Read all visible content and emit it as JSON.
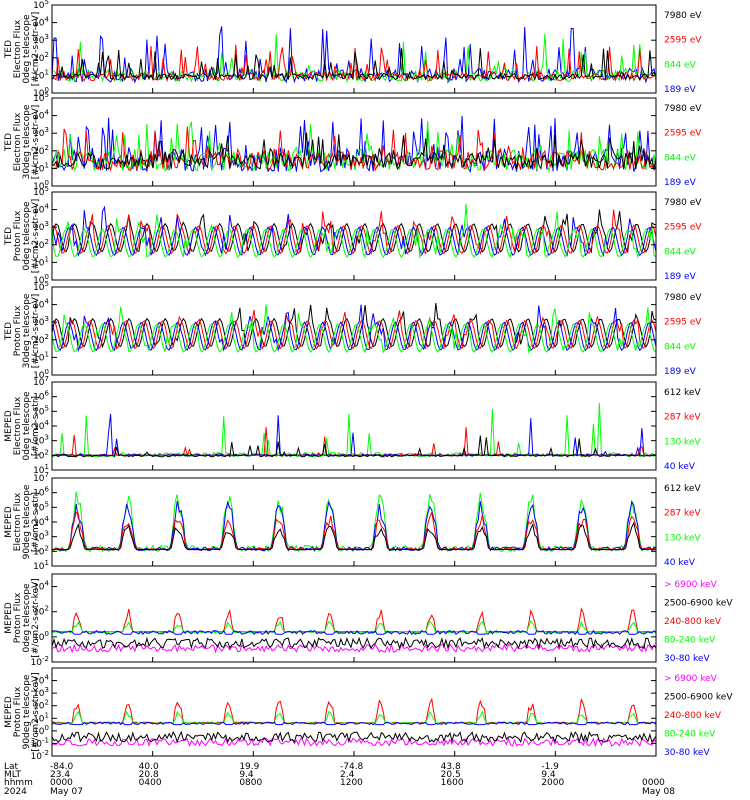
{
  "colors": {
    "black": "#000000",
    "red": "#ff0000",
    "green": "#00ff00",
    "blue": "#0000ff",
    "magenta": "#ff00ff"
  },
  "chart_data": [
    {
      "type": "line",
      "ylabel": [
        "TED",
        "Electron Flux",
        "0deg telescope",
        "[#/cm2-s-str-eV]"
      ],
      "yscale": "log",
      "ylim_exp": [
        0,
        5
      ],
      "yticks": [
        {
          "b": "10",
          "e": "0"
        },
        {
          "b": "10",
          "e": "1"
        },
        {
          "b": "10",
          "e": "2"
        },
        {
          "b": "10",
          "e": "3"
        },
        {
          "b": "10",
          "e": "4"
        },
        {
          "b": "10",
          "e": "5"
        }
      ],
      "legend": [
        {
          "label": "7980 eV",
          "color": "#000000"
        },
        {
          "label": "2595 eV",
          "color": "#ff0000"
        },
        {
          "label": "844 eV",
          "color": "#00ff00"
        },
        {
          "label": "189 eV",
          "color": "#0000ff"
        }
      ],
      "pattern": "spikes",
      "baseline": [
        0.6,
        1.4
      ],
      "peak": 3.8,
      "draw": [
        "#0000ff",
        "#00ff00",
        "#ff0000",
        "#000000"
      ],
      "seed": 11
    },
    {
      "type": "line",
      "ylabel": [
        "TED",
        "Electron Flux",
        "30deg telescope",
        "[#/cm2-s-str-eV]"
      ],
      "yscale": "log",
      "ylim_exp": [
        0,
        5
      ],
      "yticks": [
        {
          "b": "10",
          "e": "0"
        },
        {
          "b": "10",
          "e": "1"
        },
        {
          "b": "10",
          "e": "2"
        },
        {
          "b": "10",
          "e": "3"
        },
        {
          "b": "10",
          "e": "4"
        },
        {
          "b": "10",
          "e": "5"
        }
      ],
      "legend": [
        {
          "label": "7980 eV",
          "color": "#000000"
        },
        {
          "label": "2595 eV",
          "color": "#ff0000"
        },
        {
          "label": "844 eV",
          "color": "#00ff00"
        },
        {
          "label": "189 eV",
          "color": "#0000ff"
        }
      ],
      "pattern": "spikes",
      "baseline": [
        0.8,
        2.2
      ],
      "peak": 4.0,
      "draw": [
        "#0000ff",
        "#00ff00",
        "#ff0000",
        "#000000"
      ],
      "seed": 23
    },
    {
      "type": "line",
      "ylabel": [
        "TED",
        "Proton Flux",
        "0deg telescope",
        "[#/cm2-s-str-eV]"
      ],
      "yscale": "log",
      "ylim_exp": [
        0,
        5
      ],
      "yticks": [
        {
          "b": "10",
          "e": "0"
        },
        {
          "b": "10",
          "e": "1"
        },
        {
          "b": "10",
          "e": "2"
        },
        {
          "b": "10",
          "e": "3"
        },
        {
          "b": "10",
          "e": "4"
        },
        {
          "b": "10",
          "e": "5"
        }
      ],
      "legend": [
        {
          "label": "7980 eV",
          "color": "#000000"
        },
        {
          "label": "2595 eV",
          "color": "#ff0000"
        },
        {
          "label": "844 eV",
          "color": "#00ff00"
        },
        {
          "label": "189 eV",
          "color": "#0000ff"
        }
      ],
      "pattern": "bands",
      "baseline": [
        1.0,
        3.0
      ],
      "peak": 4.2,
      "draw": [
        "#000000",
        "#ff0000",
        "#0000ff",
        "#00ff00"
      ],
      "seed": 37
    },
    {
      "type": "line",
      "ylabel": [
        "TED",
        "Proton Flux",
        "30deg telescope",
        "[#/cm2-s-str-eV]"
      ],
      "yscale": "log",
      "ylim_exp": [
        0,
        5
      ],
      "yticks": [
        {
          "b": "10",
          "e": "0"
        },
        {
          "b": "10",
          "e": "1"
        },
        {
          "b": "10",
          "e": "2"
        },
        {
          "b": "10",
          "e": "3"
        },
        {
          "b": "10",
          "e": "4"
        },
        {
          "b": "10",
          "e": "5"
        }
      ],
      "legend": [
        {
          "label": "7980 eV",
          "color": "#000000"
        },
        {
          "label": "2595 eV",
          "color": "#ff0000"
        },
        {
          "label": "844 eV",
          "color": "#00ff00"
        },
        {
          "label": "189 eV",
          "color": "#0000ff"
        }
      ],
      "pattern": "bands",
      "baseline": [
        0.8,
        3.0
      ],
      "peak": 4.0,
      "draw": [
        "#000000",
        "#ff0000",
        "#0000ff",
        "#00ff00"
      ],
      "seed": 41
    },
    {
      "type": "line",
      "ylabel": [
        "MEPED",
        "Electron Flux",
        "0deg telescope",
        "[#/cm2-s-str]"
      ],
      "yscale": "log",
      "ylim_exp": [
        1,
        7
      ],
      "yticks": [
        {
          "b": "10",
          "e": "1"
        },
        {
          "b": "10",
          "e": "2"
        },
        {
          "b": "10",
          "e": "3"
        },
        {
          "b": "10",
          "e": "4"
        },
        {
          "b": "10",
          "e": "5"
        },
        {
          "b": "10",
          "e": "6"
        },
        {
          "b": "10",
          "e": "7"
        }
      ],
      "legend": [
        {
          "label": "612 keV",
          "color": "#000000"
        },
        {
          "label": "287 keV",
          "color": "#ff0000"
        },
        {
          "label": "130 keV",
          "color": "#00ff00"
        },
        {
          "label": "40 keV",
          "color": "#0000ff"
        }
      ],
      "pattern": "flat",
      "baseline": [
        1.9,
        2.2
      ],
      "peak": 5.6,
      "draw": [
        "#00ff00",
        "#0000ff",
        "#ff0000",
        "#000000"
      ],
      "seed": 53
    },
    {
      "type": "line",
      "ylabel": [
        "MEPED",
        "Electron Flux",
        "90deg telescope",
        "[#/cm2-s-str]"
      ],
      "yscale": "log",
      "ylim_exp": [
        1,
        7
      ],
      "yticks": [
        {
          "b": "10",
          "e": "1"
        },
        {
          "b": "10",
          "e": "2"
        },
        {
          "b": "10",
          "e": "3"
        },
        {
          "b": "10",
          "e": "4"
        },
        {
          "b": "10",
          "e": "5"
        },
        {
          "b": "10",
          "e": "6"
        },
        {
          "b": "10",
          "e": "7"
        }
      ],
      "legend": [
        {
          "label": "612 keV",
          "color": "#000000"
        },
        {
          "label": "287 keV",
          "color": "#ff0000"
        },
        {
          "label": "130 keV",
          "color": "#00ff00"
        },
        {
          "label": "40 keV",
          "color": "#0000ff"
        }
      ],
      "pattern": "bursts",
      "baseline": [
        2.0,
        2.4
      ],
      "peak": 6.2,
      "draw": [
        "#00ff00",
        "#0000ff",
        "#ff0000",
        "#000000"
      ],
      "seed": 67
    },
    {
      "type": "line",
      "ylabel": [
        "MEPED",
        "Proton Flux",
        "0deg telescope",
        "[#/cm2-s-str-keV]"
      ],
      "yscale": "log",
      "ylim_exp": [
        -2,
        5
      ],
      "yticks": [
        {
          "b": "10",
          "e": "-2"
        },
        {
          "b": "10",
          "e": "0"
        },
        {
          "b": "10",
          "e": "2"
        },
        {
          "b": "10",
          "e": "4"
        }
      ],
      "legend": [
        {
          "label": "> 6900 keV",
          "color": "#ff00ff"
        },
        {
          "label": "2500-6900 keV",
          "color": "#000000"
        },
        {
          "label": "240-800 keV",
          "color": "#ff0000"
        },
        {
          "label": "80-240 keV",
          "color": "#00ff00"
        },
        {
          "label": "30-80 keV",
          "color": "#0000ff"
        }
      ],
      "pattern": "proton",
      "baseline": [
        0.3,
        0.6
      ],
      "peak": 4.4,
      "draw": [
        "#ff00ff",
        "#000000",
        "#ff0000",
        "#00ff00",
        "#0000ff"
      ],
      "seed": 79
    },
    {
      "type": "line",
      "ylabel": [
        "MEPED",
        "Proton Flux",
        "90deg telescope",
        "[#/cm2-s-str-keV]"
      ],
      "yscale": "log",
      "ylim_exp": [
        -2,
        5
      ],
      "yticks": [
        {
          "b": "10",
          "e": "-2"
        },
        {
          "b": "10",
          "e": "-1"
        },
        {
          "b": "10",
          "e": "0"
        },
        {
          "b": "10",
          "e": "1"
        },
        {
          "b": "10",
          "e": "2"
        },
        {
          "b": "10",
          "e": "3"
        },
        {
          "b": "10",
          "e": "4"
        }
      ],
      "legend": [
        {
          "label": "> 6900 keV",
          "color": "#ff00ff"
        },
        {
          "label": "2500-6900 keV",
          "color": "#000000"
        },
        {
          "label": "240-800 keV",
          "color": "#ff0000"
        },
        {
          "label": "80-240 keV",
          "color": "#00ff00"
        },
        {
          "label": "30-80 keV",
          "color": "#0000ff"
        }
      ],
      "pattern": "proton",
      "baseline": [
        0.5,
        0.9
      ],
      "peak": 4.6,
      "draw": [
        "#ff00ff",
        "#000000",
        "#ff0000",
        "#00ff00",
        "#0000ff"
      ],
      "seed": 97
    }
  ],
  "x_axis": {
    "row_labels": [
      "Lat",
      "MLT",
      "hhmm",
      "2024"
    ],
    "ticks": [
      {
        "lat": "-84.0",
        "mlt": "23.4",
        "hhmm": "0000",
        "date": "May 07"
      },
      {
        "lat": "40.0",
        "mlt": "20.8",
        "hhmm": "0400",
        "date": ""
      },
      {
        "lat": "19.9",
        "mlt": "9.4",
        "hhmm": "0800",
        "date": ""
      },
      {
        "lat": "-74.8",
        "mlt": "2.4",
        "hhmm": "1200",
        "date": ""
      },
      {
        "lat": "43.8",
        "mlt": "20.5",
        "hhmm": "1600",
        "date": ""
      },
      {
        "lat": "-1.9",
        "mlt": "9.4",
        "hhmm": "2000",
        "date": ""
      },
      {
        "lat": "",
        "mlt": "",
        "hhmm": "0000",
        "date": "May 08"
      }
    ]
  }
}
